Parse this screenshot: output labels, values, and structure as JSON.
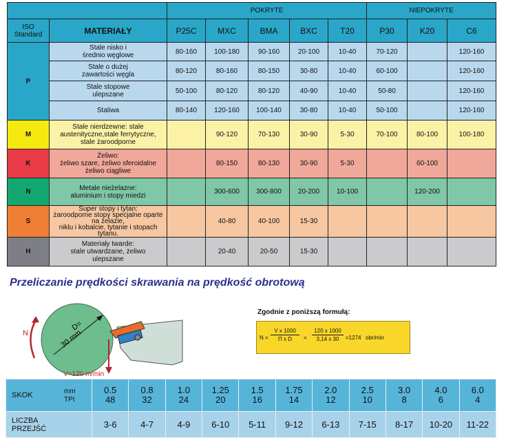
{
  "header": {
    "groups": {
      "coated": "POKRYTE",
      "uncoated": "NIEPOKRYTE"
    },
    "iso_line1": "ISO",
    "iso_line2": "Standard",
    "materials": "MATERIAŁY",
    "grades": [
      "P25C",
      "MXC",
      "BMA",
      "BXC",
      "T20",
      "P30",
      "K20",
      "C6"
    ]
  },
  "table": {
    "P": {
      "code": "P",
      "rows": [
        {
          "desc": [
            "Stale nisko i",
            "średnio węglowe"
          ],
          "values": [
            "80-160",
            "100-180",
            "90-160",
            "20-100",
            "10-40",
            "70-120",
            "",
            "120-160"
          ]
        },
        {
          "desc": [
            "Stale o dużej",
            "zawartości węgla"
          ],
          "values": [
            "80-120",
            "80-160",
            "80-150",
            "30-80",
            "10-40",
            "60-100",
            "",
            "120-160"
          ]
        },
        {
          "desc": [
            "Stale stopowe",
            "ulepszane"
          ],
          "values": [
            "50-100",
            "80-120",
            "80-120",
            "40-90",
            "10-40",
            "50-80",
            "",
            "120-160"
          ]
        },
        {
          "desc": [
            "Staliwa"
          ],
          "values": [
            "80-140",
            "120-160",
            "100-140",
            "30-80",
            "10-40",
            "50-100",
            "",
            "120-160"
          ]
        }
      ]
    },
    "M": {
      "code": "M",
      "desc": [
        "Stale nierdzewne: stale",
        "austenityczne,stale ferrytyczne,",
        "stale żaroodporne"
      ],
      "values": [
        "",
        "90-120",
        "70-130",
        "30-90",
        "5-30",
        "70-100",
        "80-100",
        "100-180"
      ]
    },
    "K": {
      "code": "K",
      "desc": [
        "Żeliwo:",
        "żeliwo szare, żeliwo sferoidalne",
        "żeliwo ciągliwe"
      ],
      "values": [
        "",
        "80-150",
        "80-130",
        "30-90",
        "5-30",
        "",
        "60-100",
        ""
      ]
    },
    "N": {
      "code": "N",
      "desc": [
        "Metale nieżelazne:",
        "aluminium i stopy miedzi"
      ],
      "values": [
        "",
        "300-600",
        "300-800",
        "20-200",
        "10-100",
        "",
        "120-200",
        ""
      ]
    },
    "S": {
      "code": "S",
      "desc": [
        "Super stopy i tytan:",
        "żaroodporne stopy specjalne oparte na żelazie,",
        "niklu i kobalcie, tytanie i stopach tytanu."
      ],
      "values": [
        "",
        "40-80",
        "40-100",
        "15-30",
        "",
        "",
        "",
        ""
      ]
    },
    "H": {
      "code": "H",
      "desc": [
        "Materiały twarde:",
        "stale utwardzane, żeliwo",
        "ulepszane"
      ],
      "values": [
        "",
        "20-40",
        "20-50",
        "15-30",
        "",
        "",
        "",
        ""
      ]
    }
  },
  "conversion": {
    "title": "Przeliczanie prędkości skrawania na prędkość obrotową",
    "diagram": {
      "n_label": "N",
      "d_label": "D=",
      "d_value": "30 mm",
      "v_label": "V=120 m/min"
    },
    "formula_label": "Zgodnie z poniższą formułą:",
    "formula": {
      "lhs": "N =",
      "num1": "V x 1000",
      "den1": "Π x D",
      "eq": "=",
      "num2": "120 x 1000",
      "den2": "3,14 x 30",
      "result": "=1274",
      "unit": "obr/min"
    }
  },
  "pitch": {
    "skok_label": "SKOK",
    "unit_mm": "mm",
    "unit_tpi": "TPI",
    "mm": [
      "0.5",
      "0.8",
      "1.0",
      "1.25",
      "1.5",
      "1.75",
      "2.0",
      "2.5",
      "3.0",
      "4.0",
      "6.0"
    ],
    "tpi": [
      "48",
      "32",
      "24",
      "20",
      "16",
      "14",
      "12",
      "10",
      "8",
      "6",
      "4"
    ],
    "count_label1": "LICZBA",
    "count_label2": "PRZEJŚĆ",
    "passes": [
      "3-6",
      "4-7",
      "4-9",
      "6-10",
      "5-11",
      "9-12",
      "6-13",
      "7-15",
      "8-17",
      "10-20",
      "11-22"
    ]
  },
  "colors": {
    "header": "#2aa6c8",
    "title": "#2c2f8c",
    "formula_bg": "#f8d62a",
    "P": "#2aa6c8",
    "M": "#f4ea10",
    "K": "#e83c47",
    "N": "#12a870",
    "S": "#ee7f34",
    "H": "#7e7f86"
  }
}
